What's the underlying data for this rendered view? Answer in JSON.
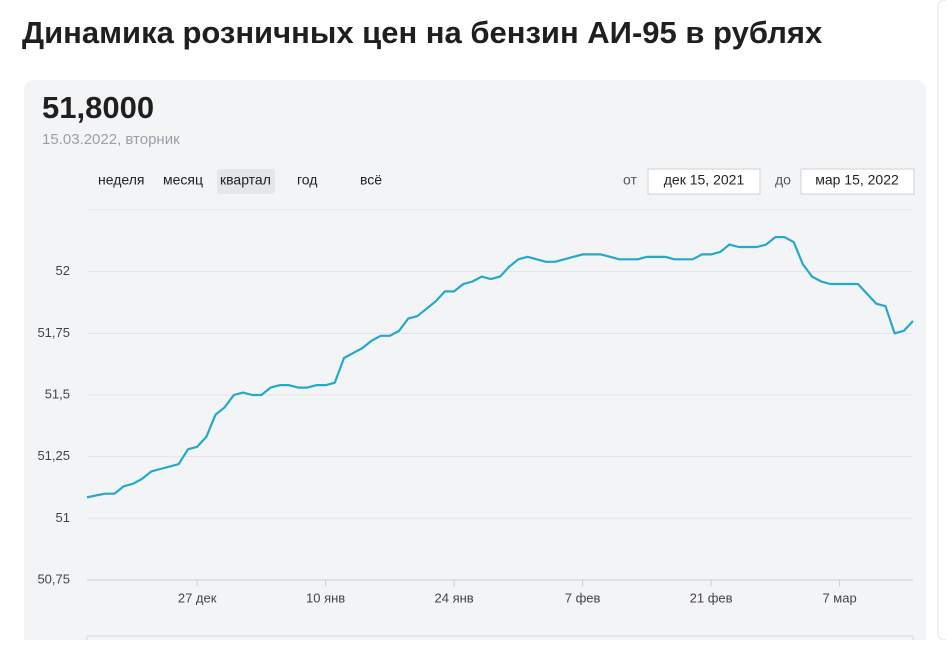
{
  "header": {
    "title": "Динамика розничных цен на бензин АИ-95 в рублях",
    "current_value": "51,8000",
    "current_date": "15.03.2022, вторник"
  },
  "controls": {
    "ranges": [
      "неделя",
      "месяц",
      "квартал",
      "год",
      "всё"
    ],
    "selected": "квартал",
    "from_label": "от",
    "from_date": "дек 15, 2021",
    "to_label": "до",
    "to_date": "мар 15, 2022"
  },
  "chart_data": {
    "type": "line",
    "x": [
      "2021-12-15",
      "2021-12-16",
      "2021-12-17",
      "2021-12-18",
      "2021-12-19",
      "2021-12-20",
      "2021-12-21",
      "2021-12-22",
      "2021-12-23",
      "2021-12-24",
      "2021-12-25",
      "2021-12-26",
      "2021-12-27",
      "2021-12-28",
      "2021-12-29",
      "2021-12-30",
      "2021-12-31",
      "2022-01-01",
      "2022-01-02",
      "2022-01-03",
      "2022-01-04",
      "2022-01-05",
      "2022-01-06",
      "2022-01-07",
      "2022-01-08",
      "2022-01-09",
      "2022-01-10",
      "2022-01-11",
      "2022-01-12",
      "2022-01-13",
      "2022-01-14",
      "2022-01-15",
      "2022-01-16",
      "2022-01-17",
      "2022-01-18",
      "2022-01-19",
      "2022-01-20",
      "2022-01-21",
      "2022-01-22",
      "2022-01-23",
      "2022-01-24",
      "2022-01-25",
      "2022-01-26",
      "2022-01-27",
      "2022-01-28",
      "2022-01-29",
      "2022-01-30",
      "2022-01-31",
      "2022-02-01",
      "2022-02-02",
      "2022-02-03",
      "2022-02-04",
      "2022-02-05",
      "2022-02-06",
      "2022-02-07",
      "2022-02-08",
      "2022-02-09",
      "2022-02-10",
      "2022-02-11",
      "2022-02-12",
      "2022-02-13",
      "2022-02-14",
      "2022-02-15",
      "2022-02-16",
      "2022-02-17",
      "2022-02-18",
      "2022-02-19",
      "2022-02-20",
      "2022-02-21",
      "2022-02-22",
      "2022-02-23",
      "2022-02-24",
      "2022-02-25",
      "2022-02-26",
      "2022-02-27",
      "2022-02-28",
      "2022-03-01",
      "2022-03-02",
      "2022-03-03",
      "2022-03-04",
      "2022-03-05",
      "2022-03-06",
      "2022-03-07",
      "2022-03-08",
      "2022-03-09",
      "2022-03-10",
      "2022-03-11",
      "2022-03-12",
      "2022-03-13",
      "2022-03-14",
      "2022-03-15"
    ],
    "series": [
      {
        "color": "#26a9c8",
        "values": [
          51.085,
          51.093,
          51.1,
          51.1,
          51.13,
          51.14,
          51.16,
          51.19,
          51.2,
          51.21,
          51.22,
          51.28,
          51.29,
          51.33,
          51.42,
          51.45,
          51.5,
          51.51,
          51.5,
          51.5,
          51.53,
          51.54,
          51.54,
          51.53,
          51.53,
          51.54,
          51.54,
          51.55,
          51.65,
          51.67,
          51.69,
          51.72,
          51.74,
          51.74,
          51.76,
          51.81,
          51.82,
          51.85,
          51.88,
          51.92,
          51.92,
          51.95,
          51.96,
          51.98,
          51.97,
          51.98,
          52.02,
          52.05,
          52.06,
          52.05,
          52.04,
          52.04,
          52.05,
          52.06,
          52.07,
          52.07,
          52.07,
          52.06,
          52.05,
          52.05,
          52.05,
          52.06,
          52.06,
          52.06,
          52.05,
          52.05,
          52.05,
          52.07,
          52.07,
          52.08,
          52.11,
          52.1,
          52.1,
          52.1,
          52.11,
          52.14,
          52.14,
          52.12,
          52.03,
          51.98,
          51.96,
          51.95,
          51.95,
          51.95,
          51.95,
          51.91,
          51.87,
          51.86,
          51.75,
          51.76,
          51.8
        ]
      }
    ],
    "xlim": [
      "2021-12-15",
      "2022-03-15"
    ],
    "xticks": [
      {
        "value": "2021-12-27",
        "label": "27 дек"
      },
      {
        "value": "2022-01-10",
        "label": "10 янв"
      },
      {
        "value": "2022-01-24",
        "label": "24 янв"
      },
      {
        "value": "2022-02-07",
        "label": "7 фев"
      },
      {
        "value": "2022-02-21",
        "label": "21 фев"
      },
      {
        "value": "2022-03-07",
        "label": "7 мар"
      }
    ],
    "ylim": [
      50.75,
      52.25
    ],
    "yticks": [
      {
        "value": 50.75,
        "label": "50,75"
      },
      51,
      {
        "value": 51.25,
        "label": "51,25"
      },
      {
        "value": 51.5,
        "label": "51,5"
      },
      {
        "value": 51.75,
        "label": "51,75"
      },
      52
    ],
    "grid": true
  }
}
